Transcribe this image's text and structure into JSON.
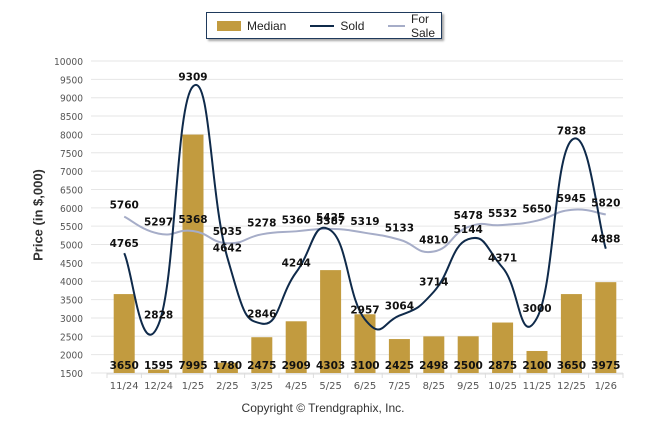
{
  "legend": {
    "median_label": "Median",
    "sold_label": "Sold",
    "for_sale_label": "For Sale"
  },
  "colors": {
    "median": "#c29b3f",
    "sold": "#0f2a4a",
    "for_sale": "#a6adc8",
    "grid": "#e6e6e6"
  },
  "copyright": "Copyright © Trendgraphix, Inc.",
  "chart_data": {
    "type": "bar",
    "title": "",
    "xlabel": "",
    "ylabel": "Price (in $,000)",
    "ylim": [
      1500,
      10000
    ],
    "yticks": [
      1500,
      2000,
      2500,
      3000,
      3500,
      4000,
      4500,
      5000,
      5500,
      6000,
      6500,
      7000,
      7500,
      8000,
      8500,
      9000,
      9500,
      10000
    ],
    "grid": true,
    "legend_position": "top-center",
    "categories": [
      "11/24",
      "12/24",
      "1/25",
      "2/25",
      "3/25",
      "4/25",
      "5/25",
      "6/25",
      "7/25",
      "8/25",
      "9/25",
      "10/25",
      "11/25",
      "12/25",
      "1/26"
    ],
    "series": [
      {
        "name": "Median",
        "type": "bar",
        "values": [
          3650,
          1595,
          7995,
          1780,
          2475,
          2909,
          4303,
          3100,
          2425,
          2498,
          2500,
          2875,
          2100,
          3650,
          3975
        ]
      },
      {
        "name": "Sold",
        "type": "line",
        "smooth": true,
        "values": [
          4765,
          2828,
          9309,
          4642,
          2846,
          4244,
          5387,
          2957,
          3064,
          3714,
          5144,
          4371,
          3000,
          7838,
          4888
        ]
      },
      {
        "name": "For Sale",
        "type": "line",
        "smooth": true,
        "values": [
          5760,
          5297,
          5368,
          5035,
          5278,
          5360,
          5425,
          5319,
          5133,
          4810,
          5478,
          5532,
          5650,
          5945,
          5820
        ]
      }
    ]
  }
}
